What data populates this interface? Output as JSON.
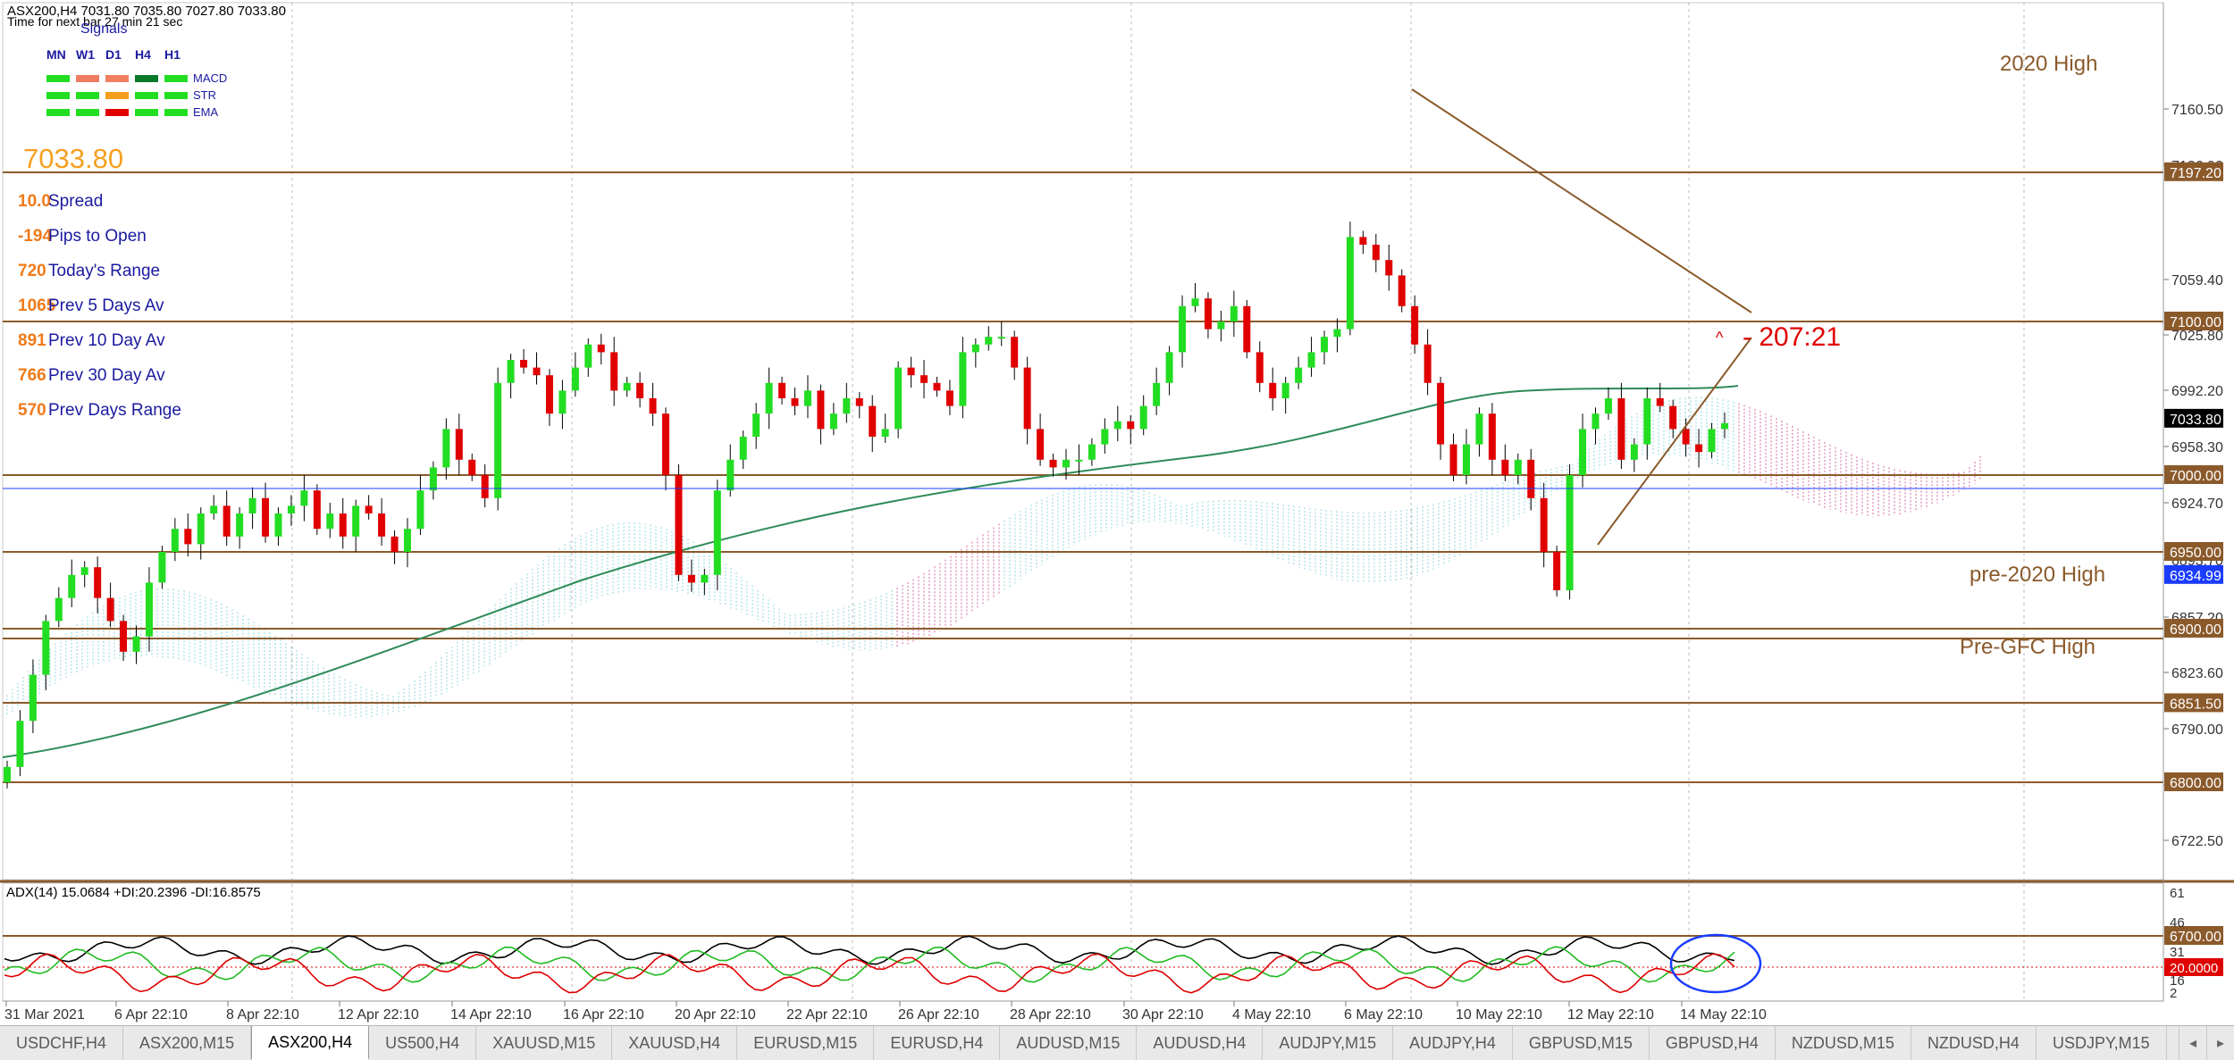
{
  "header": {
    "symbol_line": "ASX200,H4  7031.80 7035.80 7027.80 7033.80",
    "timer": "Time for next bar 27 min 21 sec",
    "signals_title": "Signals"
  },
  "signals": {
    "timeframes": [
      "MN",
      "W1",
      "D1",
      "H4",
      "H1"
    ],
    "rows": [
      {
        "name": "MACD",
        "colors": [
          "#22dd22",
          "#ef7b63",
          "#f08060",
          "#0a7a2a",
          "#22dd22"
        ]
      },
      {
        "name": "STR",
        "colors": [
          "#22dd22",
          "#22dd22",
          "#f59e1d",
          "#22dd22",
          "#22dd22"
        ]
      },
      {
        "name": "EMA",
        "colors": [
          "#22dd22",
          "#22dd22",
          "#e00000",
          "#22dd22",
          "#22dd22"
        ]
      }
    ]
  },
  "info_panel": {
    "price": "7033.80",
    "stats": [
      {
        "value": "10.0",
        "label": "Spread"
      },
      {
        "value": "-194",
        "label": "Pips to Open"
      },
      {
        "value": "720",
        "label": "Today's Range"
      },
      {
        "value": "1065",
        "label": "Prev 5 Days Av"
      },
      {
        "value": "891",
        "label": "Prev 10 Day Av"
      },
      {
        "value": "766",
        "label": "Prev 30 Day Av"
      },
      {
        "value": "570",
        "label": "Prev Days Range"
      }
    ]
  },
  "annotations": {
    "high_2020": "2020 High",
    "pre_2020_high": "pre-2020 High",
    "pre_gfc_high": "Pre-GFC High",
    "countdown": "- 207:21"
  },
  "price_axis": {
    "ticks": [
      "7160.50",
      "7126.90",
      "7059.40",
      "7025.80",
      "6992.20",
      "6958.30",
      "6924.70",
      "6893.70",
      "6857.20",
      "6823.60",
      "6790.00",
      "6756.20",
      "6722.50"
    ],
    "level_labels": [
      {
        "text": "7197.20",
        "bg": "#8b5a2b",
        "fg": "#ffffff"
      },
      {
        "text": "7100.00",
        "bg": "#8b5a2b",
        "fg": "#ffffff"
      },
      {
        "text": "7033.80",
        "bg": "#000000",
        "fg": "#ffffff"
      },
      {
        "text": "7000.00",
        "bg": "#8b5a2b",
        "fg": "#ffffff"
      },
      {
        "text": "6950.00",
        "bg": "#8b5a2b",
        "fg": "#ffffff"
      },
      {
        "text": "6934.99",
        "bg": "#1a3cff",
        "fg": "#ffffff"
      },
      {
        "text": "6900.00",
        "bg": "#8b5a2b",
        "fg": "#ffffff"
      },
      {
        "text": "6851.50",
        "bg": "#8b5a2b",
        "fg": "#ffffff"
      },
      {
        "text": "6800.00",
        "bg": "#8b5a2b",
        "fg": "#ffffff"
      },
      {
        "text": "6700.00",
        "bg": "#8b5a2b",
        "fg": "#ffffff"
      }
    ]
  },
  "indicator": {
    "label": "ADX(14) 15.0684 +DI:20.2396 -DI:16.8575",
    "axis_ticks": [
      "61",
      "46",
      "31",
      "16",
      "2"
    ],
    "level_label": "20.0000"
  },
  "time_axis": {
    "labels": [
      "31 Mar 2021",
      "6 Apr 22:10",
      "8 Apr 22:10",
      "12 Apr 22:10",
      "14 Apr 22:10",
      "16 Apr 22:10",
      "20 Apr 22:10",
      "22 Apr 22:10",
      "26 Apr 22:10",
      "28 Apr 22:10",
      "30 Apr 22:10",
      "4 May 22:10",
      "6 May 22:10",
      "10 May 22:10",
      "12 May 22:10",
      "14 May 22:10"
    ]
  },
  "tabs": {
    "items": [
      "USDCHF,H4",
      "ASX200,M15",
      "ASX200,H4",
      "US500,H4",
      "XAUUSD,M15",
      "XAUUSD,H4",
      "EURUSD,M15",
      "EURUSD,H4",
      "AUDUSD,M15",
      "AUDUSD,H4",
      "AUDJPY,M15",
      "AUDJPY,H4",
      "GBPUSD,M15",
      "GBPUSD,H4",
      "NZDUSD,M15",
      "NZDUSD,H4",
      "USDJPY,M15"
    ],
    "active_index": 2
  },
  "colors": {
    "bull": "#22dd22",
    "bear": "#e00000",
    "level_line": "#8b5a2b",
    "ma_line": "#2e8b57",
    "adx_line": "#000000",
    "plus_di": "#22bb22",
    "minus_di": "#dd0000",
    "value_orange": "#f5a020",
    "label_blue": "#1a1aa0"
  },
  "chart_data": {
    "type": "candlestick",
    "symbol": "ASX200",
    "timeframe": "H4",
    "ohlc_last": {
      "open": 7031.8,
      "high": 7035.8,
      "low": 7027.8,
      "close": 7033.8
    },
    "horizontal_levels": [
      7197.2,
      7100.0,
      7000.0,
      6950.0,
      6900.0,
      6893.7,
      6851.5,
      6800.0,
      6700.0
    ],
    "y_range": [
      6700,
      7210
    ],
    "closes": [
      6810,
      6840,
      6870,
      6905,
      6920,
      6935,
      6940,
      6920,
      6905,
      6885,
      6895,
      6930,
      6950,
      6965,
      6955,
      6975,
      6980,
      6960,
      6975,
      6985,
      6960,
      6975,
      6980,
      6990,
      6965,
      6975,
      6960,
      6980,
      6975,
      6960,
      6950,
      6965,
      6990,
      7005,
      7030,
      7010,
      7000,
      6985,
      7060,
      7075,
      7070,
      7065,
      7040,
      7055,
      7070,
      7085,
      7080,
      7055,
      7060,
      7050,
      7040,
      7000,
      6935,
      6930,
      6935,
      6990,
      7010,
      7025,
      7040,
      7060,
      7050,
      7045,
      7055,
      7030,
      7040,
      7050,
      7045,
      7025,
      7030,
      7070,
      7065,
      7060,
      7055,
      7045,
      7080,
      7085,
      7090,
      7090,
      7070,
      7030,
      7010,
      7005,
      7010,
      7010,
      7020,
      7030,
      7035,
      7030,
      7045,
      7060,
      7080,
      7110,
      7115,
      7095,
      7100,
      7110,
      7080,
      7060,
      7050,
      7060,
      7070,
      7080,
      7090,
      7095,
      7155,
      7150,
      7140,
      7130,
      7110,
      7085,
      7060,
      7020,
      7000,
      7020,
      7040,
      7010,
      7000,
      7010,
      6985,
      6950,
      6925,
      7000,
      7030,
      7040,
      7050,
      7010,
      7020,
      7050,
      7045,
      7030,
      7020,
      7015,
      7030,
      7033.8
    ],
    "adx_level": 20.0,
    "adx_last": {
      "adx": 15.0684,
      "plus_di": 20.2396,
      "minus_di": 16.8575
    }
  }
}
